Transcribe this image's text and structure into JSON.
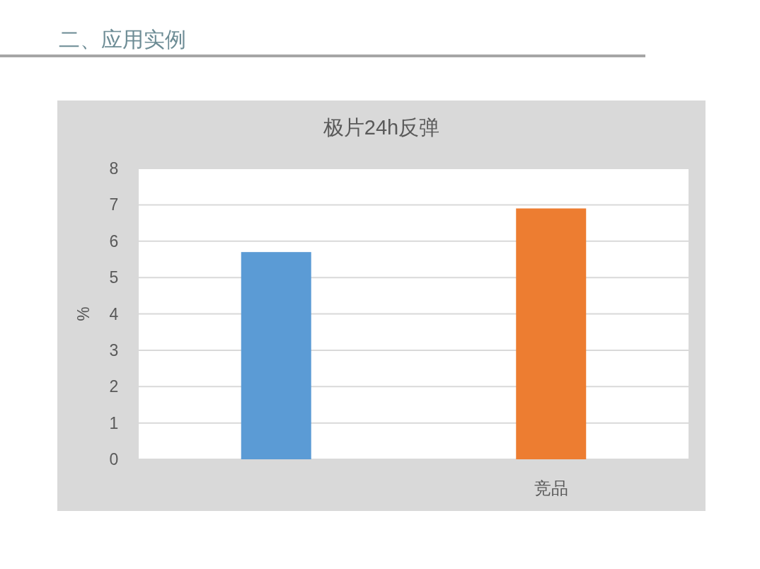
{
  "chart_data": {
    "type": "bar",
    "title": "极片24h反弹",
    "ylabel": "%",
    "categories": [
      null,
      "竞品"
    ],
    "values": [
      5.7,
      6.9
    ],
    "colors": [
      "#5b9bd5",
      "#ed7d31"
    ],
    "ylim": [
      0,
      8
    ],
    "yticks": [
      0,
      1,
      2,
      3,
      4,
      5,
      6,
      7,
      8
    ],
    "grid": "y",
    "annotations": [
      "二、应用实例"
    ]
  }
}
